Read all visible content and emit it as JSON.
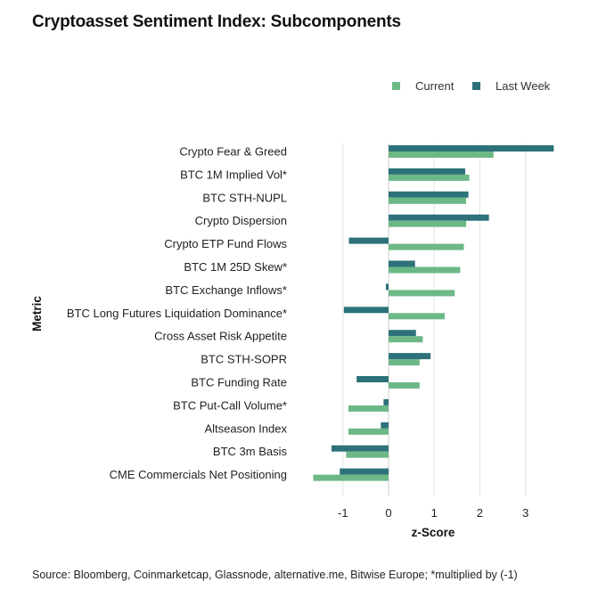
{
  "title": "Cryptoasset Sentiment Index: Subcomponents",
  "source": "Source: Bloomberg, Coinmarketcap, Glassnode, alternative.me, Bitwise Europe; *multiplied by (-1)",
  "colors": {
    "current": "#6db887",
    "last_week": "#2d727a",
    "grid": "#e3e3e3"
  },
  "chart_data": {
    "type": "bar",
    "orientation": "horizontal",
    "xlabel": "z-Score",
    "ylabel": "Metric",
    "xlim": [
      -1.65,
      3.7
    ],
    "xticks": [
      -1,
      0,
      1,
      2,
      3
    ],
    "grid": true,
    "legend_position": "top-right",
    "categories": [
      "Crypto Fear & Greed",
      "BTC 1M Implied Vol*",
      "BTC STH-NUPL",
      "Crypto Dispersion",
      "Crypto ETP Fund Flows",
      "BTC 1M 25D Skew*",
      "BTC Exchange Inflows*",
      "BTC Long Futures Liquidation Dominance*",
      "Cross Asset Risk Appetite",
      "BTC STH-SOPR",
      "BTC Funding Rate",
      "BTC Put-Call Volume*",
      "Altseason Index",
      "BTC 3m Basis",
      "CME Commercials Net Positioning"
    ],
    "series": [
      {
        "name": "Current",
        "values": [
          2.3,
          1.77,
          1.7,
          1.7,
          1.65,
          1.57,
          1.45,
          1.23,
          0.75,
          0.68,
          0.68,
          -0.88,
          -0.88,
          -0.93,
          -1.65
        ]
      },
      {
        "name": "Last Week",
        "values": [
          3.62,
          1.68,
          1.75,
          2.2,
          -0.87,
          0.58,
          -0.06,
          -0.98,
          0.6,
          0.92,
          -0.7,
          -0.11,
          -0.17,
          -1.25,
          -1.07
        ]
      }
    ]
  }
}
